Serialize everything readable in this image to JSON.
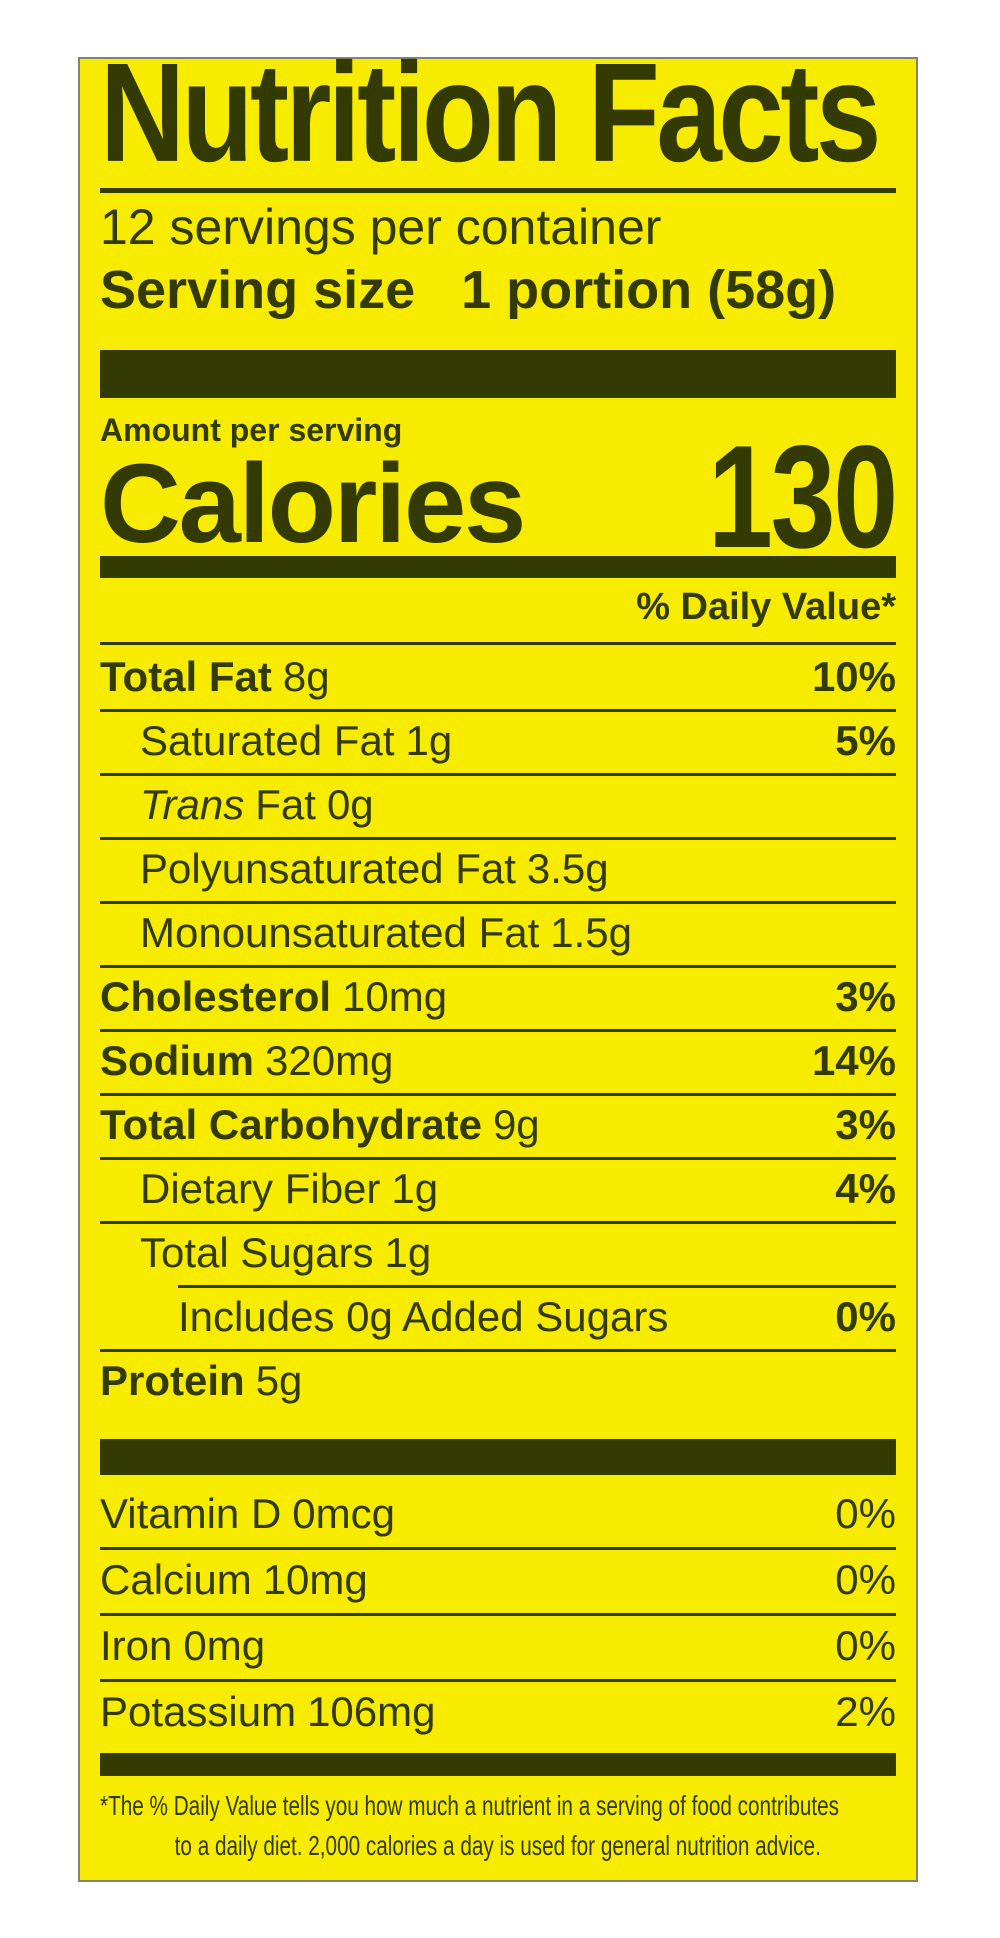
{
  "colors": {
    "background_yellow": "#f7ec00",
    "ink_dark_olive": "#333a02"
  },
  "label": {
    "title": "Nutrition Facts",
    "servings_per_container": "12 servings per container",
    "serving_size_label": "Serving size",
    "serving_size_value": "1 portion (58g)",
    "amount_per_serving": "Amount per serving",
    "calories_label": "Calories",
    "calories_value": "130",
    "daily_value_header": "% Daily Value*",
    "nutrients": [
      {
        "name": "Total Fat",
        "amount": "8g",
        "dv": "10%"
      },
      {
        "name": "Saturated Fat",
        "amount": "1g",
        "dv": "5%"
      },
      {
        "name_italic": "Trans",
        "name_rest": "Fat",
        "amount": "0g",
        "dv": ""
      },
      {
        "name": "Polyunsaturated Fat",
        "amount": "3.5g",
        "dv": ""
      },
      {
        "name": "Monounsaturated Fat",
        "amount": "1.5g",
        "dv": ""
      },
      {
        "name": "Cholesterol",
        "amount": "10mg",
        "dv": "3%"
      },
      {
        "name": "Sodium",
        "amount": "320mg",
        "dv": "14%"
      },
      {
        "name": "Total Carbohydrate",
        "amount": "9g",
        "dv": "3%"
      },
      {
        "name": "Dietary Fiber",
        "amount": "1g",
        "dv": "4%"
      },
      {
        "name": "Total Sugars",
        "amount": "1g",
        "dv": ""
      },
      {
        "name": "Includes 0g Added Sugars",
        "amount": "",
        "dv": "0%"
      },
      {
        "name": "Protein",
        "amount": "5g",
        "dv": ""
      }
    ],
    "vitamins": [
      {
        "name": "Vitamin D",
        "amount": "0mcg",
        "dv": "0%"
      },
      {
        "name": "Calcium",
        "amount": "10mg",
        "dv": "0%"
      },
      {
        "name": "Iron",
        "amount": "0mg",
        "dv": "0%"
      },
      {
        "name": "Potassium",
        "amount": "106mg",
        "dv": "2%"
      }
    ],
    "footnote_line1": "*The % Daily Value tells you how much a nutrient in a serving of food contributes",
    "footnote_line2": "to a daily diet. 2,000 calories a day is used for general nutrition advice."
  }
}
